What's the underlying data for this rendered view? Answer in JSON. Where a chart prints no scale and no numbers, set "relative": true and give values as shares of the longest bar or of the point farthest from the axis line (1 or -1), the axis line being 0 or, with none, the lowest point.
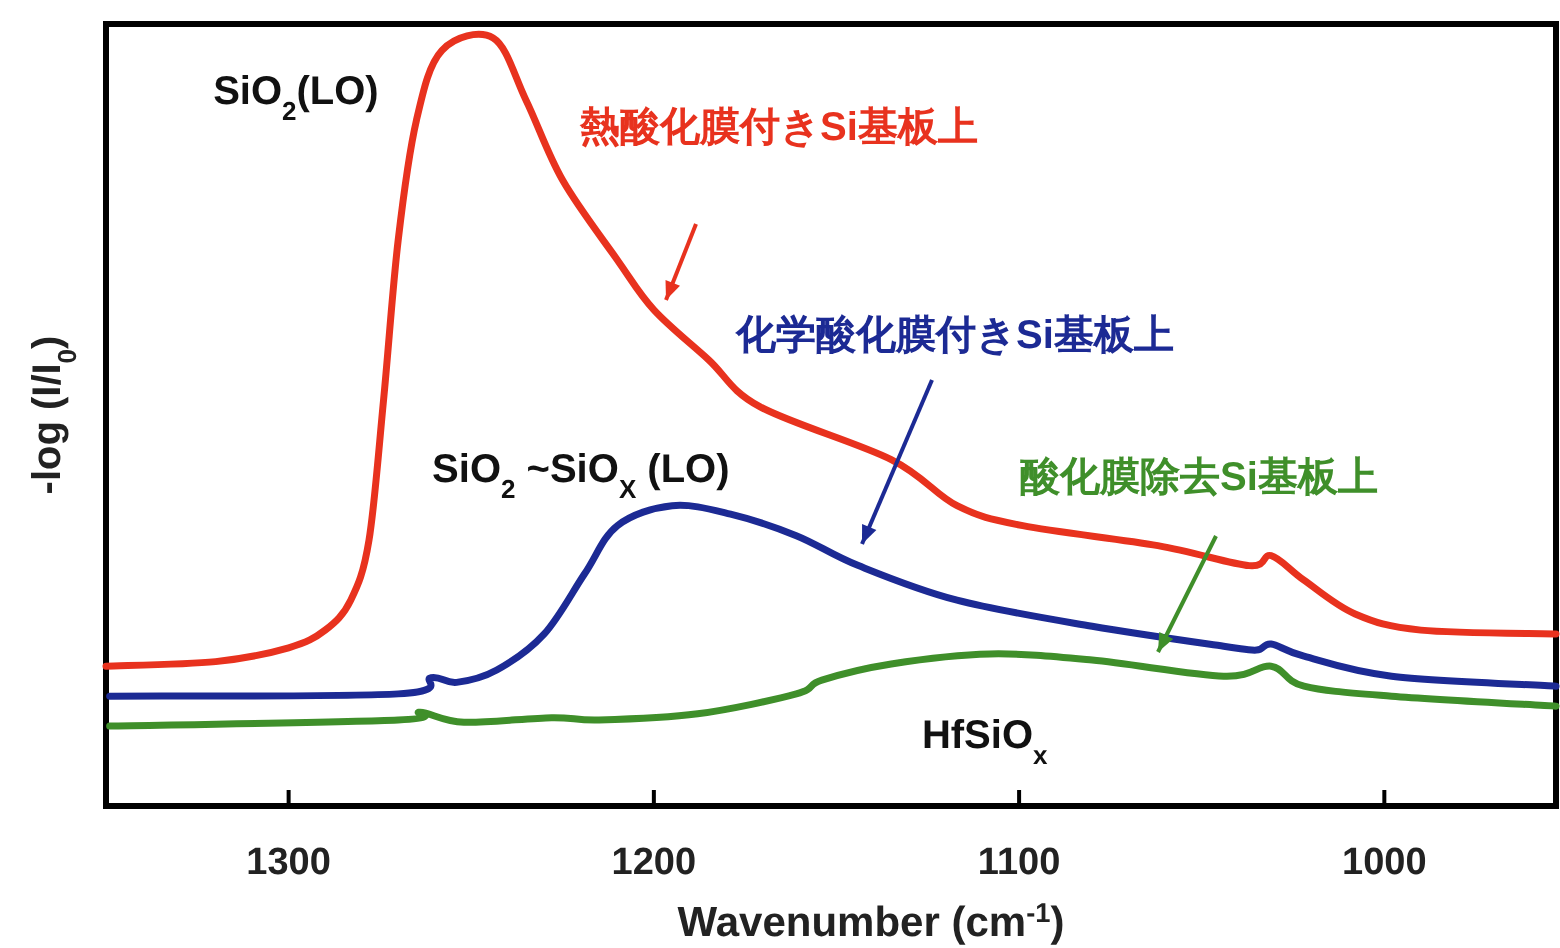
{
  "chart_data": {
    "type": "line",
    "xlabel": "Wavenumber (cm$^{-1}$)",
    "ylabel": "-log (I/I$_{0}$)",
    "relative": true,
    "xlim": [
      1350,
      953
    ],
    "xticks": [
      1300,
      1200,
      1100,
      1000
    ],
    "series": [
      {
        "name": "熱酸化膜付きSi基板上",
        "color": "#e8321e",
        "x": [
          1350,
          1320,
          1300,
          1290,
          1283,
          1278,
          1274,
          1270,
          1265,
          1258,
          1244,
          1235,
          1225,
          1210,
          1200,
          1185,
          1171,
          1135,
          1117,
          1099,
          1062,
          1037,
          1031,
          1022,
          1008,
          990,
          953
        ],
        "values": [
          0.182,
          0.188,
          0.206,
          0.229,
          0.268,
          0.346,
          0.529,
          0.737,
          0.893,
          0.984,
          1.0,
          0.919,
          0.815,
          0.711,
          0.646,
          0.581,
          0.52,
          0.451,
          0.391,
          0.365,
          0.339,
          0.313,
          0.326,
          0.294,
          0.25,
          0.229,
          0.224
        ]
      },
      {
        "name": "化学酸化膜付きSi基板上",
        "color": "#1c2a94",
        "x": [
          1349,
          1270,
          1261,
          1254,
          1243,
          1230,
          1219,
          1210,
          1195,
          1179,
          1161,
          1144,
          1117,
          1080,
          1044,
          1035,
          1031,
          1022,
          998,
          953
        ],
        "values": [
          0.143,
          0.146,
          0.167,
          0.161,
          0.177,
          0.224,
          0.302,
          0.365,
          0.391,
          0.38,
          0.352,
          0.313,
          0.268,
          0.234,
          0.208,
          0.203,
          0.211,
          0.195,
          0.169,
          0.156
        ]
      },
      {
        "name": "酸化膜除去Si基板上",
        "color": "#3f8f2a",
        "x": [
          1349,
          1270,
          1264,
          1252,
          1228,
          1215,
          1188,
          1161,
          1154,
          1135,
          1108,
          1080,
          1044,
          1031,
          1022,
          998,
          953
        ],
        "values": [
          0.104,
          0.112,
          0.122,
          0.109,
          0.115,
          0.112,
          0.12,
          0.146,
          0.164,
          0.185,
          0.198,
          0.19,
          0.169,
          0.182,
          0.156,
          0.143,
          0.13
        ]
      }
    ],
    "annotations": [
      {
        "text": "SiO$_{2}$(LO)",
        "x": 1244,
        "y": 1.0
      },
      {
        "text": "SiO$_{2}$ ~SiO$_{X}$ (LO)",
        "x": 1195,
        "y": 0.391
      },
      {
        "text": "HfSiO$_{x}$",
        "x": 1108,
        "y": 0.198
      }
    ]
  }
}
